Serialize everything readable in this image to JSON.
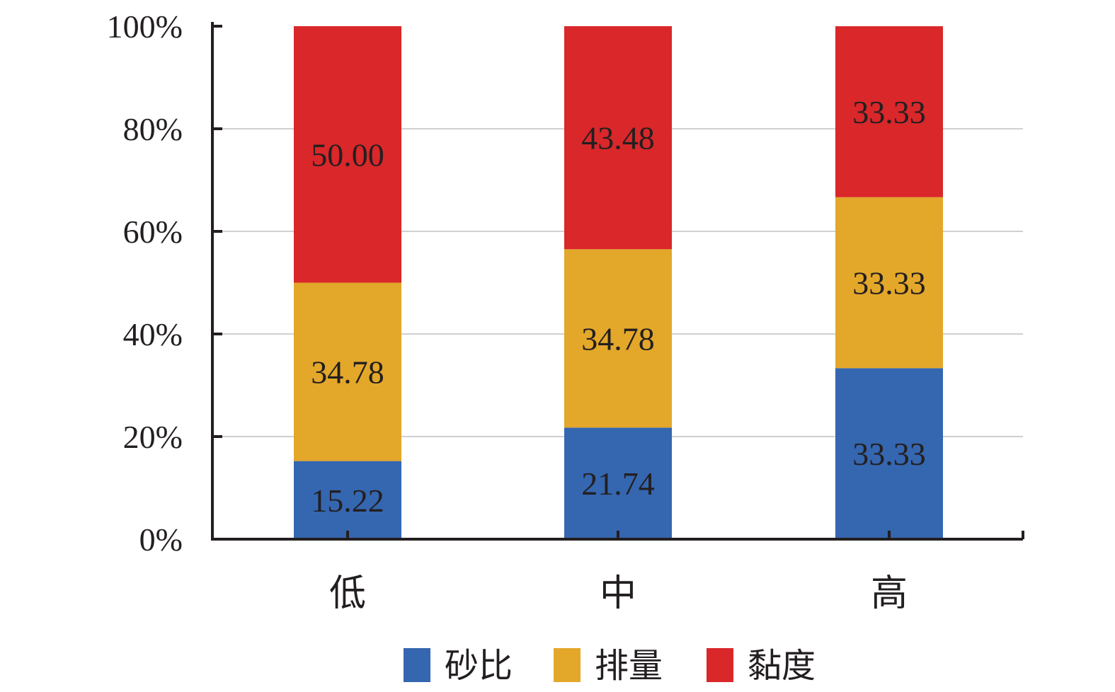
{
  "chart_data": {
    "type": "bar",
    "stacked": true,
    "percent_stacked": true,
    "categories": [
      "低",
      "中",
      "高"
    ],
    "series": [
      {
        "name": "砂比",
        "values": [
          15.22,
          21.74,
          33.33
        ],
        "color": "#3566b0"
      },
      {
        "name": "排量",
        "values": [
          34.78,
          34.78,
          33.33
        ],
        "color": "#e3a72a"
      },
      {
        "name": "黏度",
        "values": [
          50.0,
          43.48,
          33.33
        ],
        "color": "#d9272a"
      }
    ],
    "data_labels": [
      [
        "15.22",
        "21.74",
        "33.33"
      ],
      [
        "34.78",
        "34.78",
        "33.33"
      ],
      [
        "50.00",
        "43.48",
        "33.33"
      ]
    ],
    "y_ticks": [
      "0%",
      "20%",
      "40%",
      "60%",
      "80%",
      "100%"
    ],
    "ylim": [
      0,
      100
    ],
    "grid": true,
    "legend_position": "bottom",
    "title": "",
    "xlabel": "",
    "ylabel": ""
  }
}
